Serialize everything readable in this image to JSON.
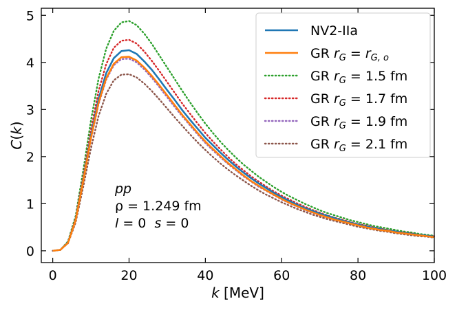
{
  "chart_data": {
    "type": "line",
    "title": "",
    "xlabel": {
      "var": "k",
      "unit": " [MeV]"
    },
    "ylabel": {
      "func": "C",
      "open": "(",
      "var": "k",
      "close": ")"
    },
    "xlim": [
      -3,
      100
    ],
    "ylim": [
      -0.25,
      5.15
    ],
    "xticks": [
      0,
      20,
      40,
      60,
      80,
      100
    ],
    "yticks": [
      0,
      1,
      2,
      3,
      4,
      5
    ],
    "grid": false,
    "legend_position": "top-right",
    "x": [
      0,
      2,
      4,
      6,
      8,
      10,
      12,
      14,
      16,
      18,
      20,
      22,
      24,
      26,
      28,
      30,
      32,
      34,
      36,
      38,
      40,
      42,
      44,
      46,
      48,
      50,
      52,
      54,
      56,
      58,
      60,
      62,
      64,
      66,
      68,
      70,
      72,
      74,
      76,
      78,
      80,
      82,
      84,
      86,
      88,
      90,
      92,
      94,
      96,
      98,
      100
    ],
    "series": [
      {
        "name": "NV2-IIa",
        "legend": [
          "NV2-IIa"
        ],
        "color": "#1f77b4",
        "style": "solid",
        "values": [
          0,
          0.02,
          0.18,
          0.66,
          1.52,
          2.44,
          3.22,
          3.77,
          4.09,
          4.24,
          4.26,
          4.18,
          4.02,
          3.84,
          3.63,
          3.41,
          3.2,
          2.98,
          2.78,
          2.59,
          2.4,
          2.24,
          2.08,
          1.93,
          1.79,
          1.66,
          1.54,
          1.43,
          1.33,
          1.23,
          1.14,
          1.06,
          0.98,
          0.91,
          0.85,
          0.79,
          0.74,
          0.69,
          0.64,
          0.6,
          0.56,
          0.52,
          0.49,
          0.46,
          0.43,
          0.41,
          0.38,
          0.36,
          0.34,
          0.32,
          0.3
        ]
      },
      {
        "name": "GR rG = rG,o",
        "legend": [
          "GR ",
          "r",
          "G",
          " = ",
          "r",
          "G, o"
        ],
        "color": "#ff7f0e",
        "style": "solid",
        "values": [
          0,
          0.02,
          0.17,
          0.65,
          1.49,
          2.39,
          3.14,
          3.66,
          3.97,
          4.11,
          4.12,
          4.04,
          3.89,
          3.71,
          3.51,
          3.3,
          3.09,
          2.88,
          2.69,
          2.5,
          2.32,
          2.16,
          2.01,
          1.86,
          1.73,
          1.6,
          1.48,
          1.38,
          1.28,
          1.19,
          1.1,
          1.02,
          0.95,
          0.88,
          0.82,
          0.76,
          0.71,
          0.66,
          0.62,
          0.58,
          0.54,
          0.5,
          0.47,
          0.44,
          0.42,
          0.39,
          0.37,
          0.35,
          0.33,
          0.31,
          0.29
        ]
      },
      {
        "name": "GR rG = 1.5 fm",
        "legend": [
          "GR ",
          "r",
          "G",
          " = 1.5 fm"
        ],
        "color": "#2ca02c",
        "style": "dotted",
        "values": [
          0,
          0.02,
          0.2,
          0.74,
          1.71,
          2.76,
          3.65,
          4.29,
          4.67,
          4.85,
          4.88,
          4.79,
          4.61,
          4.39,
          4.14,
          3.89,
          3.64,
          3.39,
          3.15,
          2.92,
          2.7,
          2.5,
          2.31,
          2.14,
          1.98,
          1.83,
          1.7,
          1.57,
          1.46,
          1.35,
          1.25,
          1.16,
          1.08,
          1.0,
          0.93,
          0.86,
          0.8,
          0.75,
          0.7,
          0.65,
          0.61,
          0.57,
          0.53,
          0.5,
          0.47,
          0.44,
          0.41,
          0.39,
          0.36,
          0.34,
          0.32
        ]
      },
      {
        "name": "GR rG = 1.7 fm",
        "legend": [
          "GR ",
          "r",
          "G",
          " = 1.7 fm"
        ],
        "color": "#d62728",
        "style": "dotted",
        "values": [
          0,
          0.02,
          0.18,
          0.69,
          1.59,
          2.56,
          3.39,
          3.96,
          4.31,
          4.46,
          4.48,
          4.4,
          4.23,
          4.03,
          3.81,
          3.58,
          3.35,
          3.12,
          2.91,
          2.7,
          2.5,
          2.32,
          2.15,
          1.99,
          1.84,
          1.71,
          1.58,
          1.47,
          1.36,
          1.26,
          1.17,
          1.09,
          1.01,
          0.94,
          0.87,
          0.81,
          0.75,
          0.7,
          0.66,
          0.61,
          0.57,
          0.54,
          0.5,
          0.47,
          0.44,
          0.41,
          0.39,
          0.37,
          0.34,
          0.32,
          0.31
        ]
      },
      {
        "name": "GR rG = 1.9 fm",
        "legend": [
          "GR ",
          "r",
          "G",
          " = 1.9 fm"
        ],
        "color": "#9467bd",
        "style": "dotted",
        "values": [
          0,
          0.02,
          0.17,
          0.64,
          1.47,
          2.36,
          3.11,
          3.63,
          3.94,
          4.07,
          4.08,
          4.0,
          3.85,
          3.67,
          3.47,
          3.26,
          3.05,
          2.85,
          2.66,
          2.47,
          2.29,
          2.13,
          1.98,
          1.84,
          1.71,
          1.58,
          1.47,
          1.36,
          1.27,
          1.18,
          1.09,
          1.01,
          0.94,
          0.87,
          0.81,
          0.75,
          0.7,
          0.65,
          0.61,
          0.57,
          0.53,
          0.5,
          0.47,
          0.44,
          0.41,
          0.39,
          0.36,
          0.34,
          0.32,
          0.31,
          0.29
        ]
      },
      {
        "name": "GR rG = 2.1 fm",
        "legend": [
          "GR ",
          "r",
          "G",
          " = 2.1 fm"
        ],
        "color": "#8c564b",
        "style": "dotted",
        "values": [
          0,
          0.02,
          0.16,
          0.6,
          1.36,
          2.17,
          2.86,
          3.33,
          3.62,
          3.74,
          3.75,
          3.68,
          3.55,
          3.39,
          3.21,
          3.02,
          2.83,
          2.65,
          2.47,
          2.3,
          2.14,
          1.99,
          1.85,
          1.72,
          1.6,
          1.49,
          1.38,
          1.28,
          1.19,
          1.11,
          1.03,
          0.96,
          0.89,
          0.83,
          0.77,
          0.72,
          0.67,
          0.63,
          0.59,
          0.55,
          0.51,
          0.48,
          0.45,
          0.42,
          0.4,
          0.37,
          0.35,
          0.33,
          0.31,
          0.3,
          0.28
        ]
      }
    ],
    "annotations": {
      "line1": "pp",
      "line2": "ρ = 1.249 fm",
      "line3": [
        "l",
        " = 0  ",
        "s",
        " = 0"
      ]
    }
  }
}
